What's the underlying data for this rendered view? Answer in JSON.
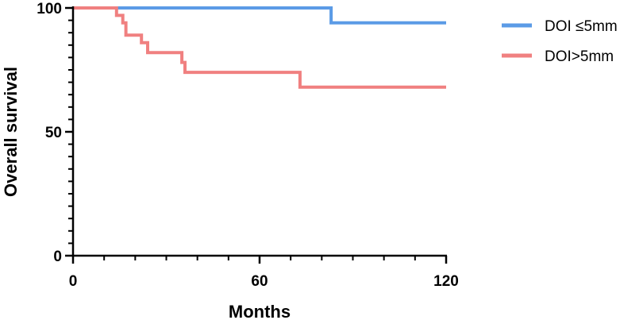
{
  "chart_data": {
    "type": "line",
    "subtype": "kaplan-meier step",
    "xlabel": "Months",
    "ylabel": "Overall survival",
    "xlim": [
      0,
      120
    ],
    "ylim": [
      0,
      100
    ],
    "x_major_ticks": [
      0,
      60,
      120
    ],
    "x_minor_step": 10,
    "y_major_ticks": [
      0,
      50,
      100
    ],
    "y_minor_step": 5,
    "grid": false,
    "legend_position": "top-right",
    "series": [
      {
        "name": "DOI ≤5mm",
        "color": "#5B9BE6",
        "steps": [
          [
            0,
            100
          ],
          [
            83,
            100
          ],
          [
            83,
            94
          ],
          [
            120,
            94
          ]
        ]
      },
      {
        "name": "DOI>5mm",
        "color": "#F08080",
        "steps": [
          [
            0,
            100
          ],
          [
            14,
            100
          ],
          [
            14,
            97
          ],
          [
            16,
            97
          ],
          [
            16,
            94
          ],
          [
            17,
            94
          ],
          [
            17,
            89
          ],
          [
            22,
            89
          ],
          [
            22,
            86
          ],
          [
            24,
            86
          ],
          [
            24,
            82
          ],
          [
            35,
            82
          ],
          [
            35,
            78
          ],
          [
            36,
            78
          ],
          [
            36,
            74
          ],
          [
            73,
            74
          ],
          [
            73,
            68
          ],
          [
            120,
            68
          ]
        ]
      }
    ]
  }
}
